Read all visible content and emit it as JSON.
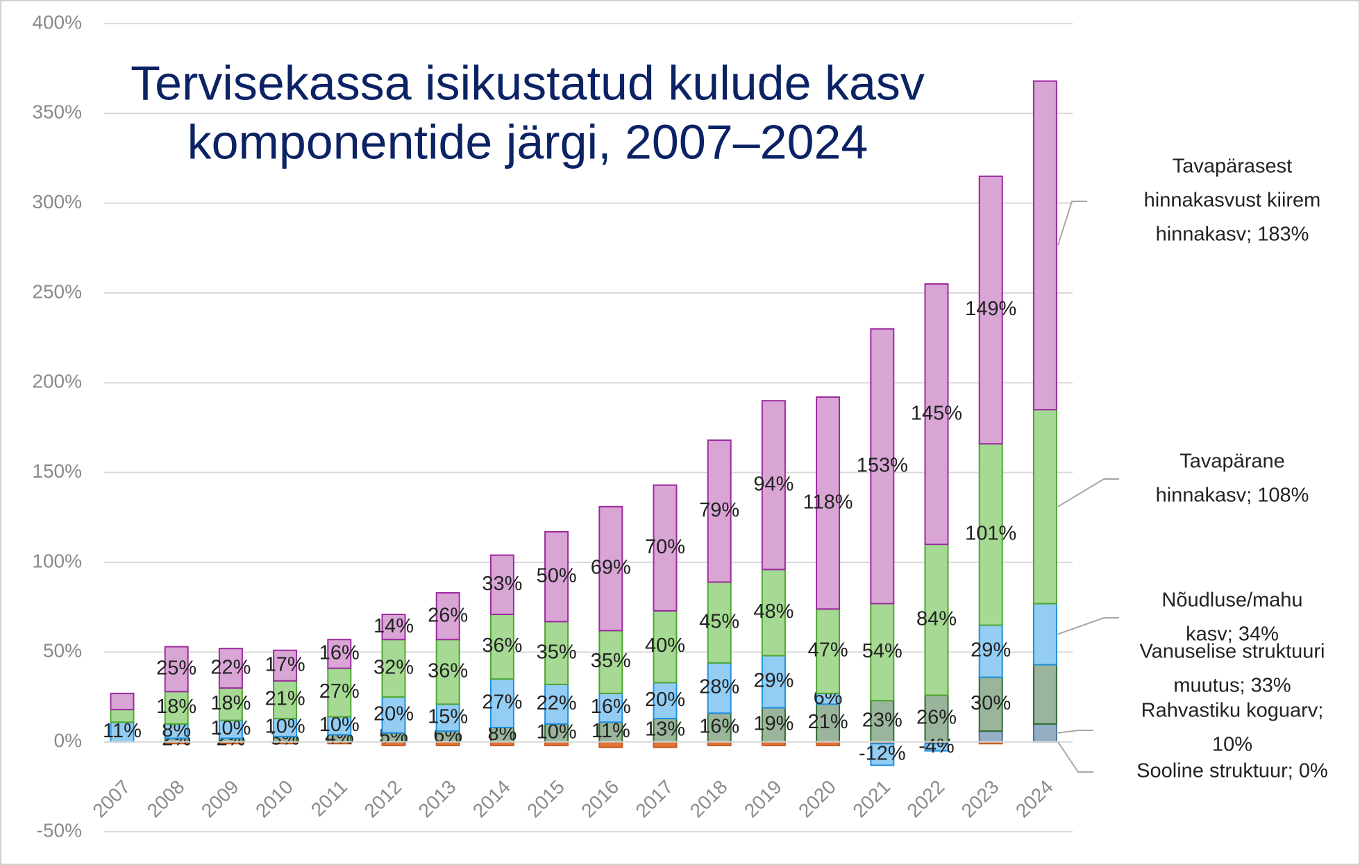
{
  "chart_data": {
    "type": "stacked_bar",
    "title": [
      "Tervisekassa isikustatud kulude kasv",
      "komponentide järgi, 2007–2024"
    ],
    "categories": [
      "2007",
      "2008",
      "2009",
      "2010",
      "2011",
      "2012",
      "2013",
      "2014",
      "2015",
      "2016",
      "2017",
      "2018",
      "2019",
      "2020",
      "2021",
      "2022",
      "2023",
      "2024"
    ],
    "ylim": [
      -50,
      400
    ],
    "yticks": [
      {
        "value": -50,
        "label": "-50%"
      },
      {
        "value": 0,
        "label": "0%"
      },
      {
        "value": 50,
        "label": "50%"
      },
      {
        "value": 100,
        "label": "100%"
      },
      {
        "value": 150,
        "label": "150%"
      },
      {
        "value": 200,
        "label": "200%"
      },
      {
        "value": 250,
        "label": "250%"
      },
      {
        "value": 300,
        "label": "300%"
      },
      {
        "value": 350,
        "label": "350%"
      },
      {
        "value": 400,
        "label": "400%"
      }
    ],
    "grid": true,
    "series": [
      {
        "color": "#e97132",
        "stroke": "#c55a1f",
        "values": [
          0,
          -1,
          -1,
          -1,
          -1,
          -2,
          -2,
          -2,
          -2,
          -3,
          -3,
          -2,
          -2,
          -2,
          -1,
          -1,
          -1,
          0
        ]
      },
      {
        "color": "#94aec4",
        "stroke": "#4e7394",
        "values": [
          0,
          0,
          0,
          0,
          0,
          0,
          0,
          0,
          0,
          0,
          0,
          0,
          0,
          0,
          0,
          0,
          6,
          10
        ]
      },
      {
        "color": "#9ab59c",
        "stroke": "#2e6b30",
        "values": [
          0,
          2,
          2,
          3,
          4,
          5,
          6,
          8,
          10,
          11,
          13,
          16,
          19,
          21,
          23,
          26,
          30,
          33
        ],
        "value_labels": [
          null,
          "2%",
          "2%",
          "3%",
          "4%",
          "5%",
          "6%",
          "8%",
          "10%",
          "11%",
          "13%",
          "16%",
          "19%",
          "21%",
          "23%",
          "26%",
          "30%",
          null
        ]
      },
      {
        "color": "#94cdf3",
        "stroke": "#1e8fe0",
        "values": [
          11,
          8,
          10,
          10,
          10,
          20,
          15,
          27,
          22,
          16,
          20,
          28,
          29,
          6,
          -12,
          -4,
          29,
          34
        ],
        "value_labels": [
          "11%",
          "8%",
          "10%",
          "10%",
          "10%",
          "20%",
          "15%",
          "27%",
          "22%",
          "16%",
          "20%",
          "28%",
          "29%",
          "6%",
          "-12%",
          "-4%",
          "29%",
          null
        ]
      },
      {
        "color": "#a6d994",
        "stroke": "#4ea72e",
        "values": [
          7,
          18,
          18,
          21,
          27,
          32,
          36,
          36,
          35,
          35,
          40,
          45,
          48,
          47,
          54,
          84,
          101,
          108
        ],
        "value_labels": [
          null,
          "18%",
          "18%",
          "21%",
          "27%",
          "32%",
          "36%",
          "36%",
          "35%",
          "35%",
          "40%",
          "45%",
          "48%",
          "47%",
          "54%",
          "84%",
          "101%",
          null
        ]
      },
      {
        "color": "#d8a5d5",
        "stroke": "#9c2a9e",
        "values": [
          9,
          25,
          22,
          17,
          16,
          14,
          26,
          33,
          50,
          69,
          70,
          79,
          94,
          118,
          153,
          145,
          149,
          183
        ],
        "value_labels": [
          null,
          "25%",
          "22%",
          "17%",
          "16%",
          "14%",
          "26%",
          "33%",
          "50%",
          "69%",
          "70%",
          "79%",
          "94%",
          "118%",
          "153%",
          "145%",
          "149%",
          null
        ]
      }
    ],
    "annotations": [
      {
        "lines": [
          "Sooline struktuur; 0%"
        ]
      },
      {
        "lines": [
          "Rahvastiku koguarv;",
          "10%"
        ]
      },
      {
        "lines": [
          "Vanuselise struktuuri",
          "muutus; 33%"
        ]
      },
      {
        "lines": [
          "Nõudluse/mahu",
          "kasv; 34%"
        ]
      },
      {
        "lines": [
          "Tavapärane",
          "hinnakasv; 108%"
        ]
      },
      {
        "lines": [
          "Tavapärasest",
          "hinnakasvust kiirem",
          "hinnakasv; 183%"
        ]
      }
    ]
  }
}
